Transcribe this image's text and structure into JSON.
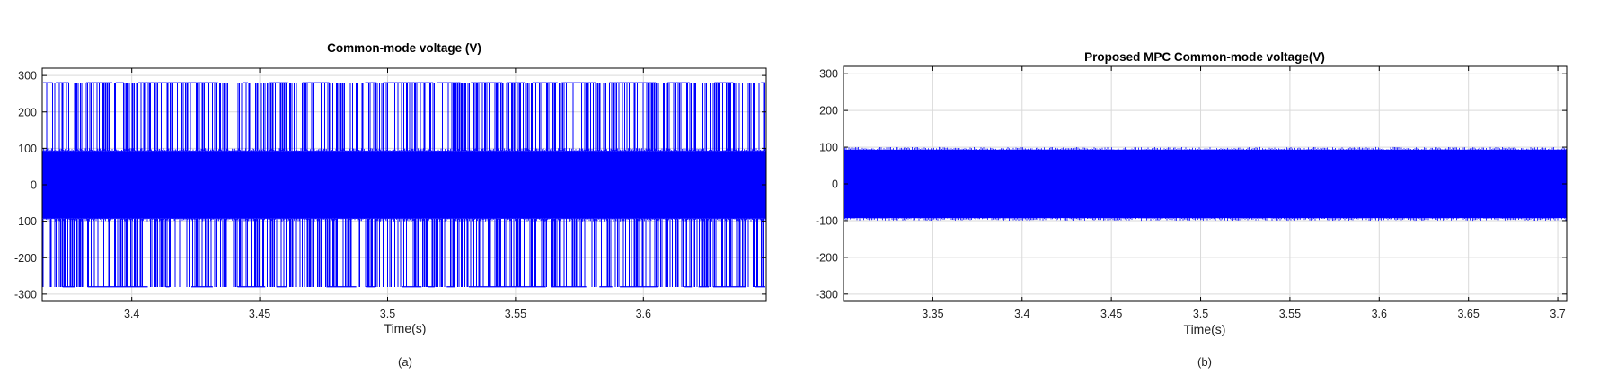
{
  "chart_data": [
    {
      "type": "line",
      "title": "Common-mode voltage (V)",
      "xlabel": "Time(s)",
      "ylabel": "",
      "caption": "(a)",
      "xlim": [
        3.365,
        3.648
      ],
      "ylim": [
        -320,
        320
      ],
      "grid": true,
      "line_color": "#0000ff",
      "xticks": [
        3.4,
        3.45,
        3.5,
        3.55,
        3.6
      ],
      "xtick_labels": [
        "3.4",
        "3.45",
        "3.5",
        "3.55",
        "3.6"
      ],
      "yticks": [
        300,
        200,
        100,
        0,
        -100,
        -200,
        -300
      ],
      "ytick_labels": [
        "300",
        "200",
        "100",
        "0",
        "-100",
        "-200",
        "-300"
      ],
      "series": [
        {
          "levels": [
            -280,
            -93,
            0,
            93,
            280
          ],
          "dense_band": [
            -93,
            93
          ],
          "peak": 280,
          "trough": -280
        }
      ]
    },
    {
      "type": "line",
      "title": "Proposed MPC Common-mode voltage(V)",
      "xlabel": "Time(s)",
      "ylabel": "",
      "caption": "(b)",
      "xlim": [
        3.3,
        3.705
      ],
      "ylim": [
        -320,
        320
      ],
      "grid": true,
      "line_color": "#0000ff",
      "xticks": [
        3.35,
        3.4,
        3.45,
        3.5,
        3.55,
        3.6,
        3.65,
        3.7
      ],
      "xtick_labels": [
        "3.35",
        "3.4",
        "3.45",
        "3.5",
        "3.55",
        "3.6",
        "3.65",
        "3.7"
      ],
      "yticks": [
        300,
        200,
        100,
        0,
        -100,
        -200,
        -300
      ],
      "ytick_labels": [
        "300",
        "200",
        "100",
        "0",
        "-100",
        "-200",
        "-300"
      ],
      "series": [
        {
          "levels": [
            -93,
            0,
            93
          ],
          "dense_band": [
            -93,
            93
          ],
          "peak": 93,
          "trough": -93
        }
      ]
    }
  ]
}
